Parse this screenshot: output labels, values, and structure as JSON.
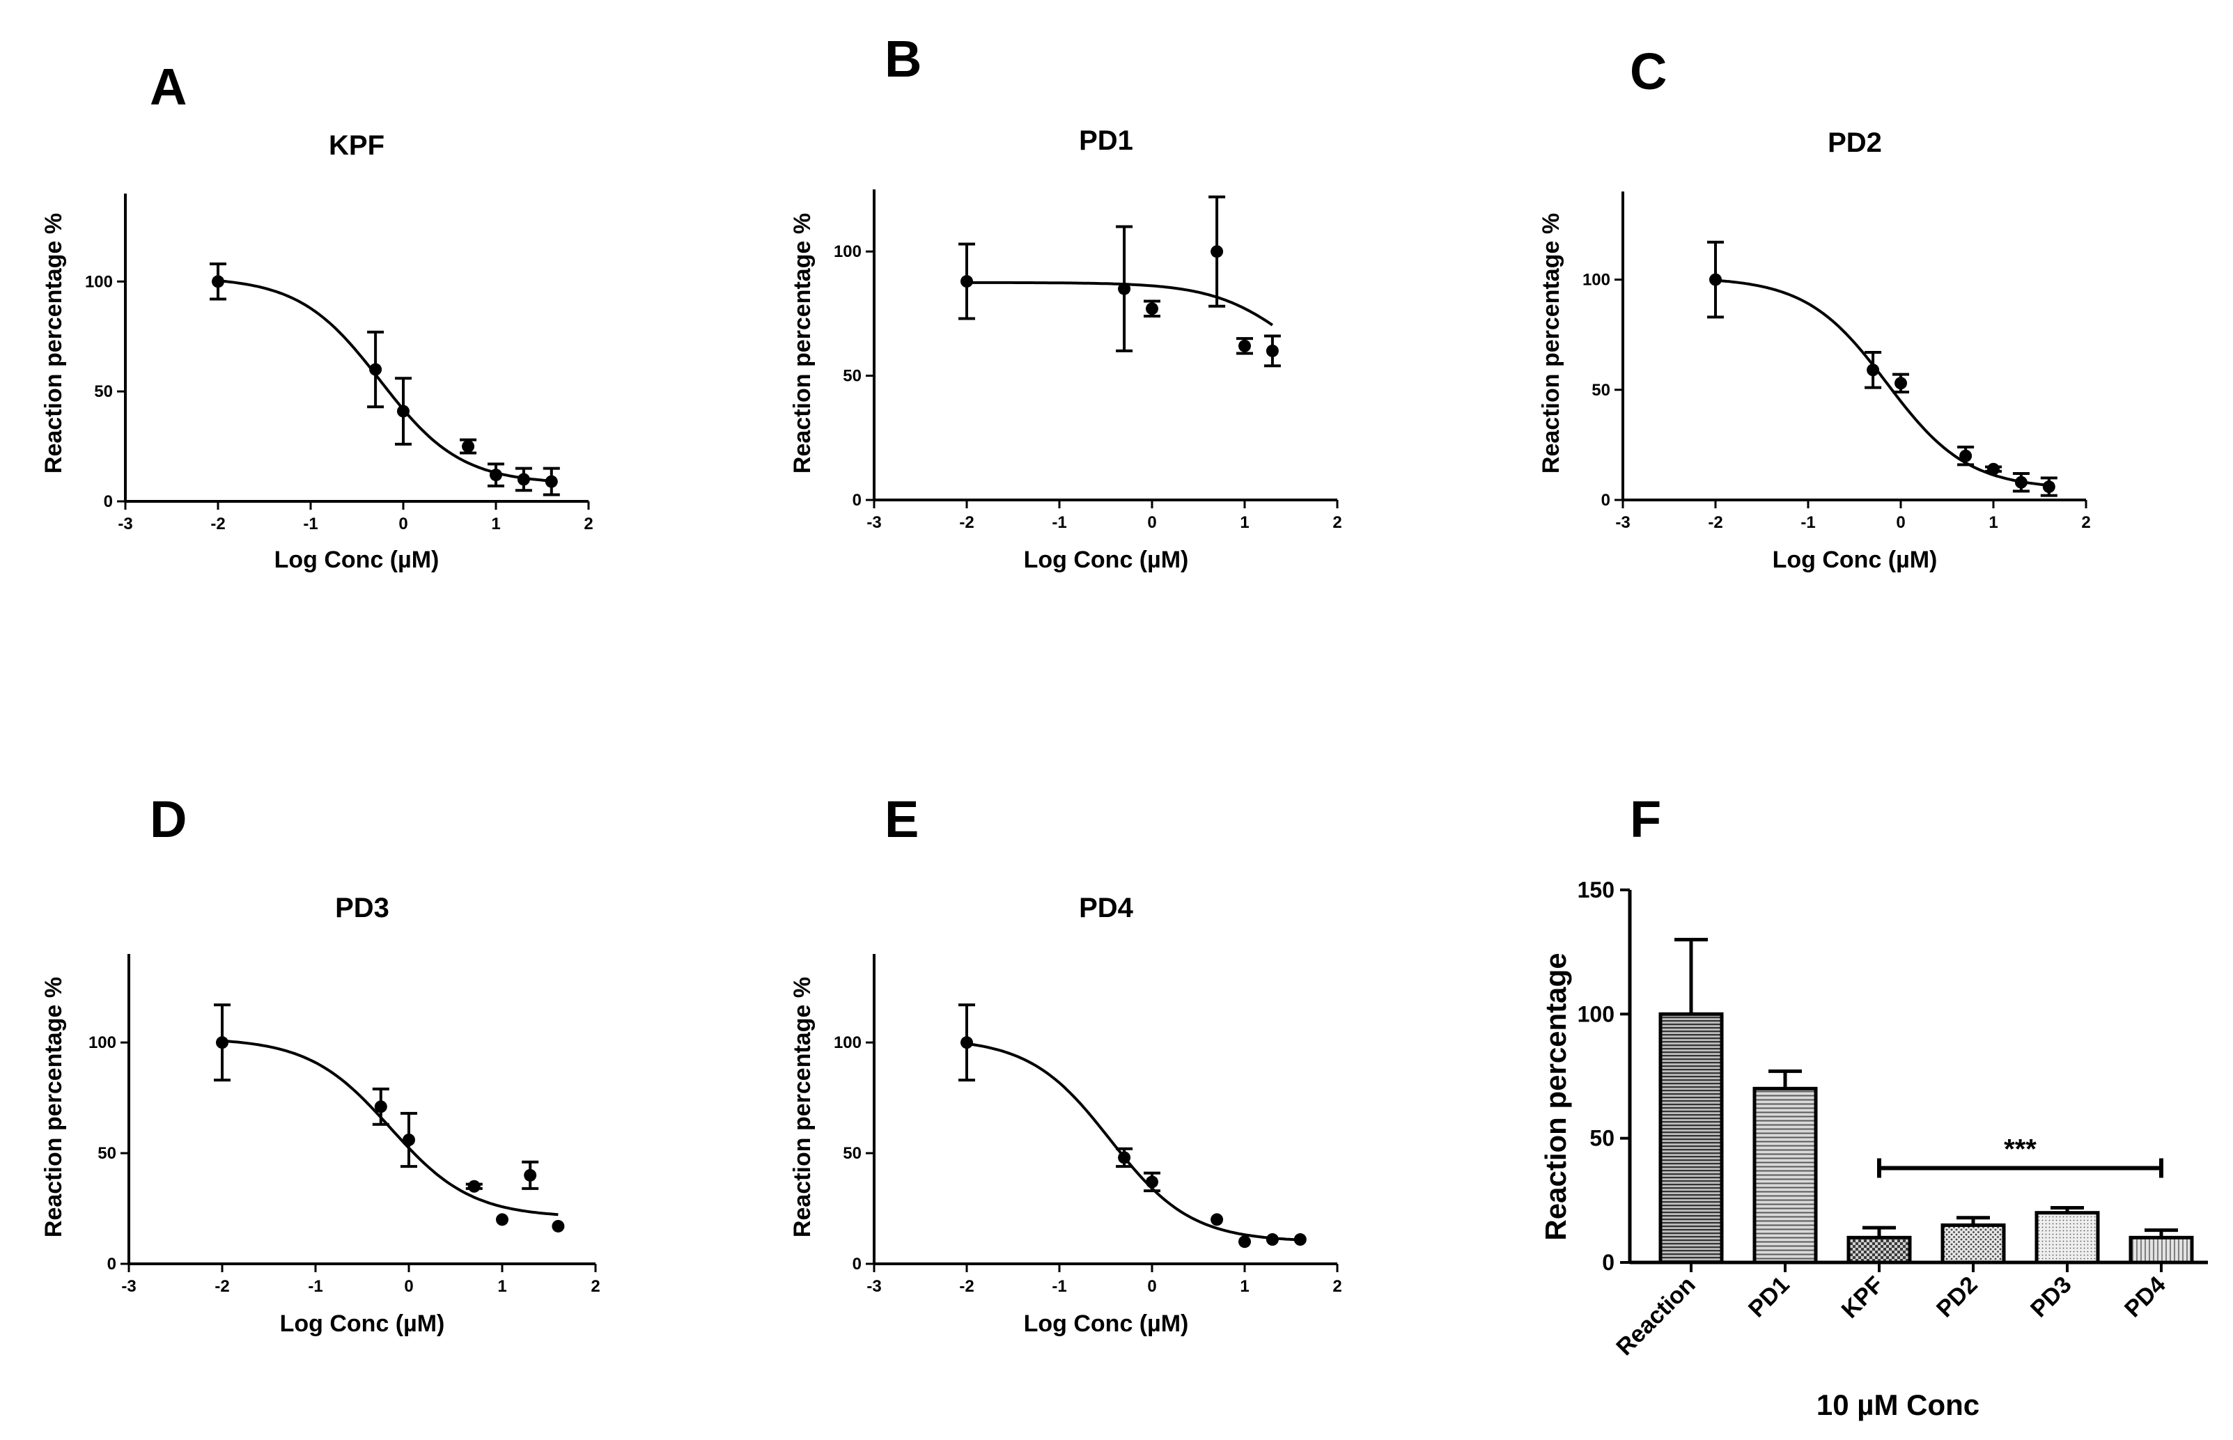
{
  "chart_data": [
    {
      "letter": "A",
      "type": "scatter",
      "title": "KPF",
      "xlabel": "Log Conc (µM)",
      "ylabel": "Reaction percentage %",
      "xlim": [
        -3,
        2
      ],
      "ylim": [
        0,
        140
      ],
      "xticks": [
        "-3",
        "-2",
        "-1",
        "0",
        "1",
        "2"
      ],
      "yticks": [
        "0",
        "50",
        "100"
      ],
      "points": [
        {
          "x": -2,
          "y": 100,
          "err": 8
        },
        {
          "x": -0.3,
          "y": 60,
          "err": 17
        },
        {
          "x": 0,
          "y": 41,
          "err": 15
        },
        {
          "x": 0.7,
          "y": 25,
          "err": 3
        },
        {
          "x": 1,
          "y": 12,
          "err": 5
        },
        {
          "x": 1.3,
          "y": 10,
          "err": 5
        },
        {
          "x": 1.6,
          "y": 9,
          "err": 6
        }
      ],
      "fit": {
        "bottom": 8,
        "top": 102,
        "logIC50": -0.25,
        "hill": 1
      }
    },
    {
      "letter": "B",
      "type": "scatter",
      "title": "PD1",
      "xlabel": "Log Conc (µM)",
      "ylabel": "Reaction percentage %",
      "xlim": [
        -3,
        2
      ],
      "ylim": [
        0,
        125
      ],
      "xticks": [
        "-3",
        "-2",
        "-1",
        "0",
        "1",
        "2"
      ],
      "yticks": [
        "0",
        "50",
        "100"
      ],
      "points": [
        {
          "x": -2,
          "y": 88,
          "err": 15
        },
        {
          "x": -0.3,
          "y": 85,
          "err": 25
        },
        {
          "x": 0,
          "y": 77,
          "err": 3
        },
        {
          "x": 0.7,
          "y": 100,
          "err": 22
        },
        {
          "x": 1,
          "y": 62,
          "err": 3
        },
        {
          "x": 1.3,
          "y": 60,
          "err": 6
        }
      ],
      "fit": {
        "bottom": 40,
        "top": 87.5,
        "logIC50": 1.55,
        "hill": 1
      }
    },
    {
      "letter": "C",
      "type": "scatter",
      "title": "PD2",
      "xlabel": "Log Conc (µM)",
      "ylabel": "Reaction percentage %",
      "xlim": [
        -3,
        2
      ],
      "ylim": [
        0,
        140
      ],
      "xticks": [
        "-3",
        "-2",
        "-1",
        "0",
        "1",
        "2"
      ],
      "yticks": [
        "0",
        "50",
        "100"
      ],
      "points": [
        {
          "x": -2,
          "y": 100,
          "err": 17
        },
        {
          "x": -0.3,
          "y": 59,
          "err": 8
        },
        {
          "x": 0,
          "y": 53,
          "err": 4
        },
        {
          "x": 0.7,
          "y": 20,
          "err": 4
        },
        {
          "x": 1,
          "y": 14,
          "err": 1
        },
        {
          "x": 1.3,
          "y": 8,
          "err": 4
        },
        {
          "x": 1.6,
          "y": 6,
          "err": 4
        }
      ],
      "fit": {
        "bottom": 5,
        "top": 101,
        "logIC50": -0.15,
        "hill": 1
      }
    },
    {
      "letter": "D",
      "type": "scatter",
      "title": "PD3",
      "xlabel": "Log Conc (µM)",
      "ylabel": "Reaction percentage %",
      "xlim": [
        -3,
        2
      ],
      "ylim": [
        0,
        140
      ],
      "xticks": [
        "-3",
        "-2",
        "-1",
        "0",
        "1",
        "2"
      ],
      "yticks": [
        "0",
        "50",
        "100"
      ],
      "points": [
        {
          "x": -2,
          "y": 100,
          "err": 17
        },
        {
          "x": -0.3,
          "y": 71,
          "err": 8
        },
        {
          "x": 0,
          "y": 56,
          "err": 12
        },
        {
          "x": 0.7,
          "y": 35,
          "err": 1
        },
        {
          "x": 1,
          "y": 20,
          "err": 0
        },
        {
          "x": 1.3,
          "y": 40,
          "err": 6
        },
        {
          "x": 1.6,
          "y": 17,
          "err": 0
        }
      ],
      "fit": {
        "bottom": 21,
        "top": 102,
        "logIC50": -0.2,
        "hill": 1
      }
    },
    {
      "letter": "E",
      "type": "scatter",
      "title": "PD4",
      "xlabel": "Log Conc (µM)",
      "ylabel": "Reaction percentage %",
      "xlim": [
        -3,
        2
      ],
      "ylim": [
        0,
        140
      ],
      "xticks": [
        "-3",
        "-2",
        "-1",
        "0",
        "1",
        "2"
      ],
      "yticks": [
        "0",
        "50",
        "100"
      ],
      "points": [
        {
          "x": -2,
          "y": 100,
          "err": 17
        },
        {
          "x": -0.3,
          "y": 48,
          "err": 4
        },
        {
          "x": 0,
          "y": 37,
          "err": 4
        },
        {
          "x": 0.7,
          "y": 20,
          "err": 0
        },
        {
          "x": 1,
          "y": 10,
          "err": 0
        },
        {
          "x": 1.3,
          "y": 11,
          "err": 0
        },
        {
          "x": 1.6,
          "y": 11,
          "err": 0
        }
      ],
      "fit": {
        "bottom": 10,
        "top": 102,
        "logIC50": -0.45,
        "hill": 1
      }
    },
    {
      "letter": "F",
      "type": "bar",
      "title": "",
      "xlabel": "10 µM Conc",
      "ylabel": "Reaction percentage",
      "ylim": [
        0,
        150
      ],
      "yticks": [
        "0",
        "50",
        "100",
        "150"
      ],
      "categories": [
        "Reaction",
        "PD1",
        "KPF",
        "PD2",
        "PD3",
        "PD4"
      ],
      "values": [
        100,
        70,
        10,
        15,
        20,
        10
      ],
      "errors": [
        30,
        7,
        4,
        3,
        2,
        3
      ],
      "significance": {
        "label": "***",
        "from": "KPF",
        "to": "PD4",
        "y": 38
      }
    }
  ]
}
